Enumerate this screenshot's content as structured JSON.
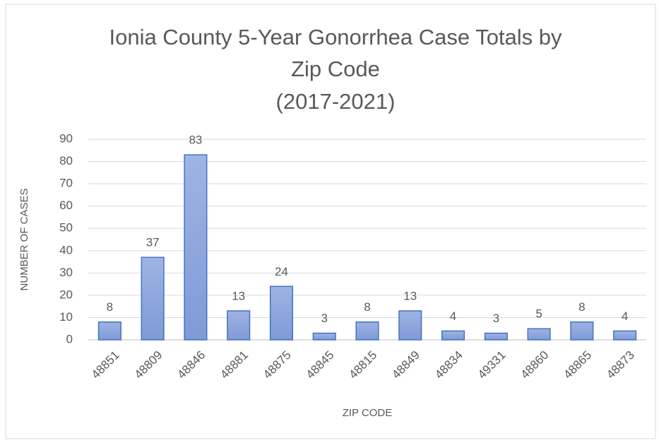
{
  "chart_data": {
    "type": "bar",
    "title": [
      "Ionia County 5-Year Gonorrhea Case Totals by",
      "Zip Code",
      "(2017-2021)"
    ],
    "x_label": "ZIP CODE",
    "y_label": "NUMBER OF CASES",
    "categories": [
      "48851",
      "48809",
      "48846",
      "48881",
      "48875",
      "48845",
      "48815",
      "48849",
      "48834",
      "49331",
      "48860",
      "48865",
      "48873"
    ],
    "values": [
      8,
      37,
      83,
      13,
      24,
      3,
      8,
      13,
      4,
      3,
      5,
      8,
      4
    ],
    "color": "#4472c4",
    "ylim": [
      0,
      90
    ],
    "yticks": [
      0,
      10,
      20,
      30,
      40,
      50,
      60,
      70,
      80,
      90
    ],
    "grid": true
  }
}
